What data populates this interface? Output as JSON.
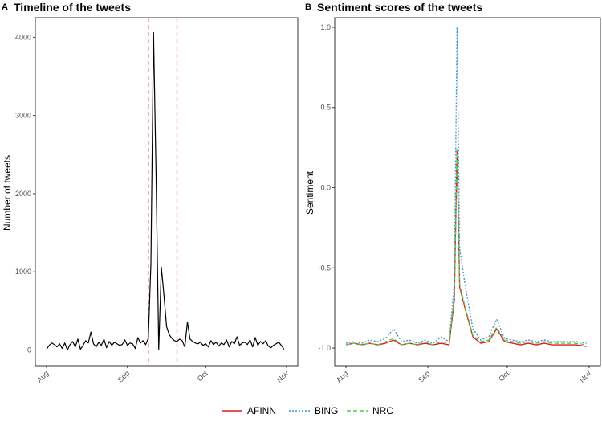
{
  "chart_data": [
    {
      "panel": "A",
      "type": "line",
      "title": "Timeline of the tweets",
      "xlabel": "",
      "ylabel": "Number of tweets",
      "x_ticks": [
        "Aug",
        "Sep",
        "Oct",
        "Nov"
      ],
      "y_ticks": [
        0,
        1000,
        2000,
        3000,
        4000
      ],
      "xlim": [
        "2019-08-01",
        "2019-11-01"
      ],
      "ylim": [
        -200,
        4250
      ],
      "grid": false,
      "vlines": {
        "color": "#e8201c",
        "style": "dashed",
        "x": [
          "2019-09-09",
          "2019-09-20"
        ]
      },
      "series": [
        {
          "color": "#000000",
          "points": [
            [
              "2019-08-01",
              10
            ],
            [
              "2019-08-02",
              60
            ],
            [
              "2019-08-03",
              90
            ],
            [
              "2019-08-04",
              70
            ],
            [
              "2019-08-05",
              40
            ],
            [
              "2019-08-06",
              80
            ],
            [
              "2019-08-07",
              20
            ],
            [
              "2019-08-08",
              90
            ],
            [
              "2019-08-09",
              0
            ],
            [
              "2019-08-10",
              70
            ],
            [
              "2019-08-11",
              110
            ],
            [
              "2019-08-12",
              40
            ],
            [
              "2019-08-13",
              140
            ],
            [
              "2019-08-14",
              10
            ],
            [
              "2019-08-15",
              60
            ],
            [
              "2019-08-16",
              120
            ],
            [
              "2019-08-17",
              90
            ],
            [
              "2019-08-18",
              230
            ],
            [
              "2019-08-19",
              80
            ],
            [
              "2019-08-20",
              40
            ],
            [
              "2019-08-21",
              100
            ],
            [
              "2019-08-22",
              60
            ],
            [
              "2019-08-23",
              140
            ],
            [
              "2019-08-24",
              30
            ],
            [
              "2019-08-25",
              110
            ],
            [
              "2019-08-26",
              60
            ],
            [
              "2019-08-27",
              100
            ],
            [
              "2019-08-28",
              80
            ],
            [
              "2019-08-29",
              60
            ],
            [
              "2019-08-30",
              70
            ],
            [
              "2019-08-31",
              130
            ],
            [
              "2019-09-01",
              60
            ],
            [
              "2019-09-02",
              90
            ],
            [
              "2019-09-03",
              80
            ],
            [
              "2019-09-04",
              20
            ],
            [
              "2019-09-05",
              160
            ],
            [
              "2019-09-06",
              90
            ],
            [
              "2019-09-07",
              120
            ],
            [
              "2019-09-08",
              70
            ],
            [
              "2019-09-09",
              150
            ],
            [
              "2019-09-10",
              1100
            ],
            [
              "2019-09-11",
              4060
            ],
            [
              "2019-09-12",
              2200
            ],
            [
              "2019-09-13",
              10
            ],
            [
              "2019-09-14",
              1060
            ],
            [
              "2019-09-15",
              700
            ],
            [
              "2019-09-16",
              300
            ],
            [
              "2019-09-17",
              200
            ],
            [
              "2019-09-18",
              150
            ],
            [
              "2019-09-19",
              120
            ],
            [
              "2019-09-20",
              110
            ],
            [
              "2019-09-21",
              140
            ],
            [
              "2019-09-22",
              120
            ],
            [
              "2019-09-23",
              40
            ],
            [
              "2019-09-24",
              360
            ],
            [
              "2019-09-25",
              140
            ],
            [
              "2019-09-26",
              110
            ],
            [
              "2019-09-27",
              90
            ],
            [
              "2019-09-28",
              80
            ],
            [
              "2019-09-29",
              100
            ],
            [
              "2019-09-30",
              60
            ],
            [
              "2019-10-01",
              80
            ],
            [
              "2019-10-02",
              40
            ],
            [
              "2019-10-03",
              120
            ],
            [
              "2019-10-04",
              70
            ],
            [
              "2019-10-05",
              100
            ],
            [
              "2019-10-06",
              50
            ],
            [
              "2019-10-07",
              90
            ],
            [
              "2019-10-08",
              70
            ],
            [
              "2019-10-09",
              130
            ],
            [
              "2019-10-10",
              40
            ],
            [
              "2019-10-11",
              110
            ],
            [
              "2019-10-12",
              80
            ],
            [
              "2019-10-13",
              170
            ],
            [
              "2019-10-14",
              60
            ],
            [
              "2019-10-15",
              90
            ],
            [
              "2019-10-16",
              100
            ],
            [
              "2019-10-17",
              70
            ],
            [
              "2019-10-18",
              130
            ],
            [
              "2019-10-19",
              40
            ],
            [
              "2019-10-20",
              160
            ],
            [
              "2019-10-21",
              60
            ],
            [
              "2019-10-22",
              110
            ],
            [
              "2019-10-23",
              80
            ],
            [
              "2019-10-24",
              120
            ],
            [
              "2019-10-25",
              50
            ],
            [
              "2019-10-26",
              30
            ],
            [
              "2019-10-27",
              60
            ],
            [
              "2019-10-28",
              80
            ],
            [
              "2019-10-29",
              100
            ],
            [
              "2019-10-30",
              60
            ],
            [
              "2019-10-31",
              10
            ]
          ]
        }
      ]
    },
    {
      "panel": "B",
      "type": "line",
      "title": "Sentiment scores of the tweets",
      "xlabel": "",
      "ylabel": "Sentiment",
      "x_ticks": [
        "Aug",
        "Sep",
        "Oct",
        "Nov"
      ],
      "y_ticks": [
        -1.0,
        -0.5,
        0.0,
        0.5,
        1.0
      ],
      "y_tick_labels": [
        "-1.0",
        "-0.5",
        "0.0",
        "0.5",
        "1.0"
      ],
      "xlim": [
        "2019-08-01",
        "2019-11-01"
      ],
      "ylim": [
        -1.11,
        1.06
      ],
      "grid": false,
      "legend": {
        "position": "bottom"
      },
      "series": [
        {
          "name": "AFINN",
          "color": "#e41a1c",
          "style": "solid",
          "points": [
            [
              "2019-08-01",
              -0.98
            ],
            [
              "2019-08-04",
              -0.97
            ],
            [
              "2019-08-07",
              -0.98
            ],
            [
              "2019-08-10",
              -0.97
            ],
            [
              "2019-08-13",
              -0.98
            ],
            [
              "2019-08-16",
              -0.97
            ],
            [
              "2019-08-19",
              -0.95
            ],
            [
              "2019-08-22",
              -0.98
            ],
            [
              "2019-08-25",
              -0.97
            ],
            [
              "2019-08-28",
              -0.98
            ],
            [
              "2019-08-31",
              -0.97
            ],
            [
              "2019-09-03",
              -0.98
            ],
            [
              "2019-09-06",
              -0.97
            ],
            [
              "2019-09-09",
              -0.98
            ],
            [
              "2019-09-11",
              -0.7
            ],
            [
              "2019-09-12",
              0.23
            ],
            [
              "2019-09-13",
              -0.62
            ],
            [
              "2019-09-15",
              -0.75
            ],
            [
              "2019-09-18",
              -0.93
            ],
            [
              "2019-09-21",
              -0.97
            ],
            [
              "2019-09-24",
              -0.96
            ],
            [
              "2019-09-27",
              -0.88
            ],
            [
              "2019-09-30",
              -0.96
            ],
            [
              "2019-10-03",
              -0.97
            ],
            [
              "2019-10-06",
              -0.98
            ],
            [
              "2019-10-09",
              -0.97
            ],
            [
              "2019-10-12",
              -0.98
            ],
            [
              "2019-10-15",
              -0.97
            ],
            [
              "2019-10-18",
              -0.98
            ],
            [
              "2019-10-21",
              -0.98
            ],
            [
              "2019-10-24",
              -0.98
            ],
            [
              "2019-10-27",
              -0.98
            ],
            [
              "2019-10-31",
              -0.99
            ]
          ]
        },
        {
          "name": "BING",
          "color": "#3b8fd6",
          "style": "dotted",
          "points": [
            [
              "2019-08-01",
              -0.97
            ],
            [
              "2019-08-04",
              -0.96
            ],
            [
              "2019-08-07",
              -0.97
            ],
            [
              "2019-08-10",
              -0.95
            ],
            [
              "2019-08-13",
              -0.96
            ],
            [
              "2019-08-16",
              -0.94
            ],
            [
              "2019-08-19",
              -0.88
            ],
            [
              "2019-08-22",
              -0.96
            ],
            [
              "2019-08-25",
              -0.95
            ],
            [
              "2019-08-28",
              -0.97
            ],
            [
              "2019-08-31",
              -0.95
            ],
            [
              "2019-09-03",
              -0.97
            ],
            [
              "2019-09-06",
              -0.93
            ],
            [
              "2019-09-09",
              -0.96
            ],
            [
              "2019-09-11",
              -0.6
            ],
            [
              "2019-09-12",
              1.0
            ],
            [
              "2019-09-13",
              -0.38
            ],
            [
              "2019-09-15",
              -0.6
            ],
            [
              "2019-09-18",
              -0.88
            ],
            [
              "2019-09-21",
              -0.95
            ],
            [
              "2019-09-24",
              -0.93
            ],
            [
              "2019-09-27",
              -0.82
            ],
            [
              "2019-09-30",
              -0.94
            ],
            [
              "2019-10-03",
              -0.95
            ],
            [
              "2019-10-06",
              -0.96
            ],
            [
              "2019-10-09",
              -0.95
            ],
            [
              "2019-10-12",
              -0.96
            ],
            [
              "2019-10-15",
              -0.95
            ],
            [
              "2019-10-18",
              -0.96
            ],
            [
              "2019-10-21",
              -0.96
            ],
            [
              "2019-10-24",
              -0.96
            ],
            [
              "2019-10-27",
              -0.96
            ],
            [
              "2019-10-31",
              -0.97
            ]
          ]
        },
        {
          "name": "NRC",
          "color": "#4ad14a",
          "style": "dashed",
          "points": [
            [
              "2019-08-01",
              -0.98
            ],
            [
              "2019-08-04",
              -0.97
            ],
            [
              "2019-08-07",
              -0.98
            ],
            [
              "2019-08-10",
              -0.97
            ],
            [
              "2019-08-13",
              -0.98
            ],
            [
              "2019-08-16",
              -0.96
            ],
            [
              "2019-08-19",
              -0.94
            ],
            [
              "2019-08-22",
              -0.98
            ],
            [
              "2019-08-25",
              -0.97
            ],
            [
              "2019-08-28",
              -0.98
            ],
            [
              "2019-08-31",
              -0.96
            ],
            [
              "2019-09-03",
              -0.98
            ],
            [
              "2019-09-06",
              -0.96
            ],
            [
              "2019-09-09",
              -0.97
            ],
            [
              "2019-09-11",
              -0.68
            ],
            [
              "2019-09-12",
              0.24
            ],
            [
              "2019-09-13",
              -0.6
            ],
            [
              "2019-09-15",
              -0.74
            ],
            [
              "2019-09-18",
              -0.92
            ],
            [
              "2019-09-21",
              -0.96
            ],
            [
              "2019-09-24",
              -0.95
            ],
            [
              "2019-09-27",
              -0.87
            ],
            [
              "2019-09-30",
              -0.95
            ],
            [
              "2019-10-03",
              -0.96
            ],
            [
              "2019-10-06",
              -0.97
            ],
            [
              "2019-10-09",
              -0.96
            ],
            [
              "2019-10-12",
              -0.97
            ],
            [
              "2019-10-15",
              -0.96
            ],
            [
              "2019-10-18",
              -0.97
            ],
            [
              "2019-10-21",
              -0.97
            ],
            [
              "2019-10-24",
              -0.97
            ],
            [
              "2019-10-27",
              -0.97
            ],
            [
              "2019-10-31",
              -0.98
            ]
          ]
        }
      ]
    }
  ]
}
